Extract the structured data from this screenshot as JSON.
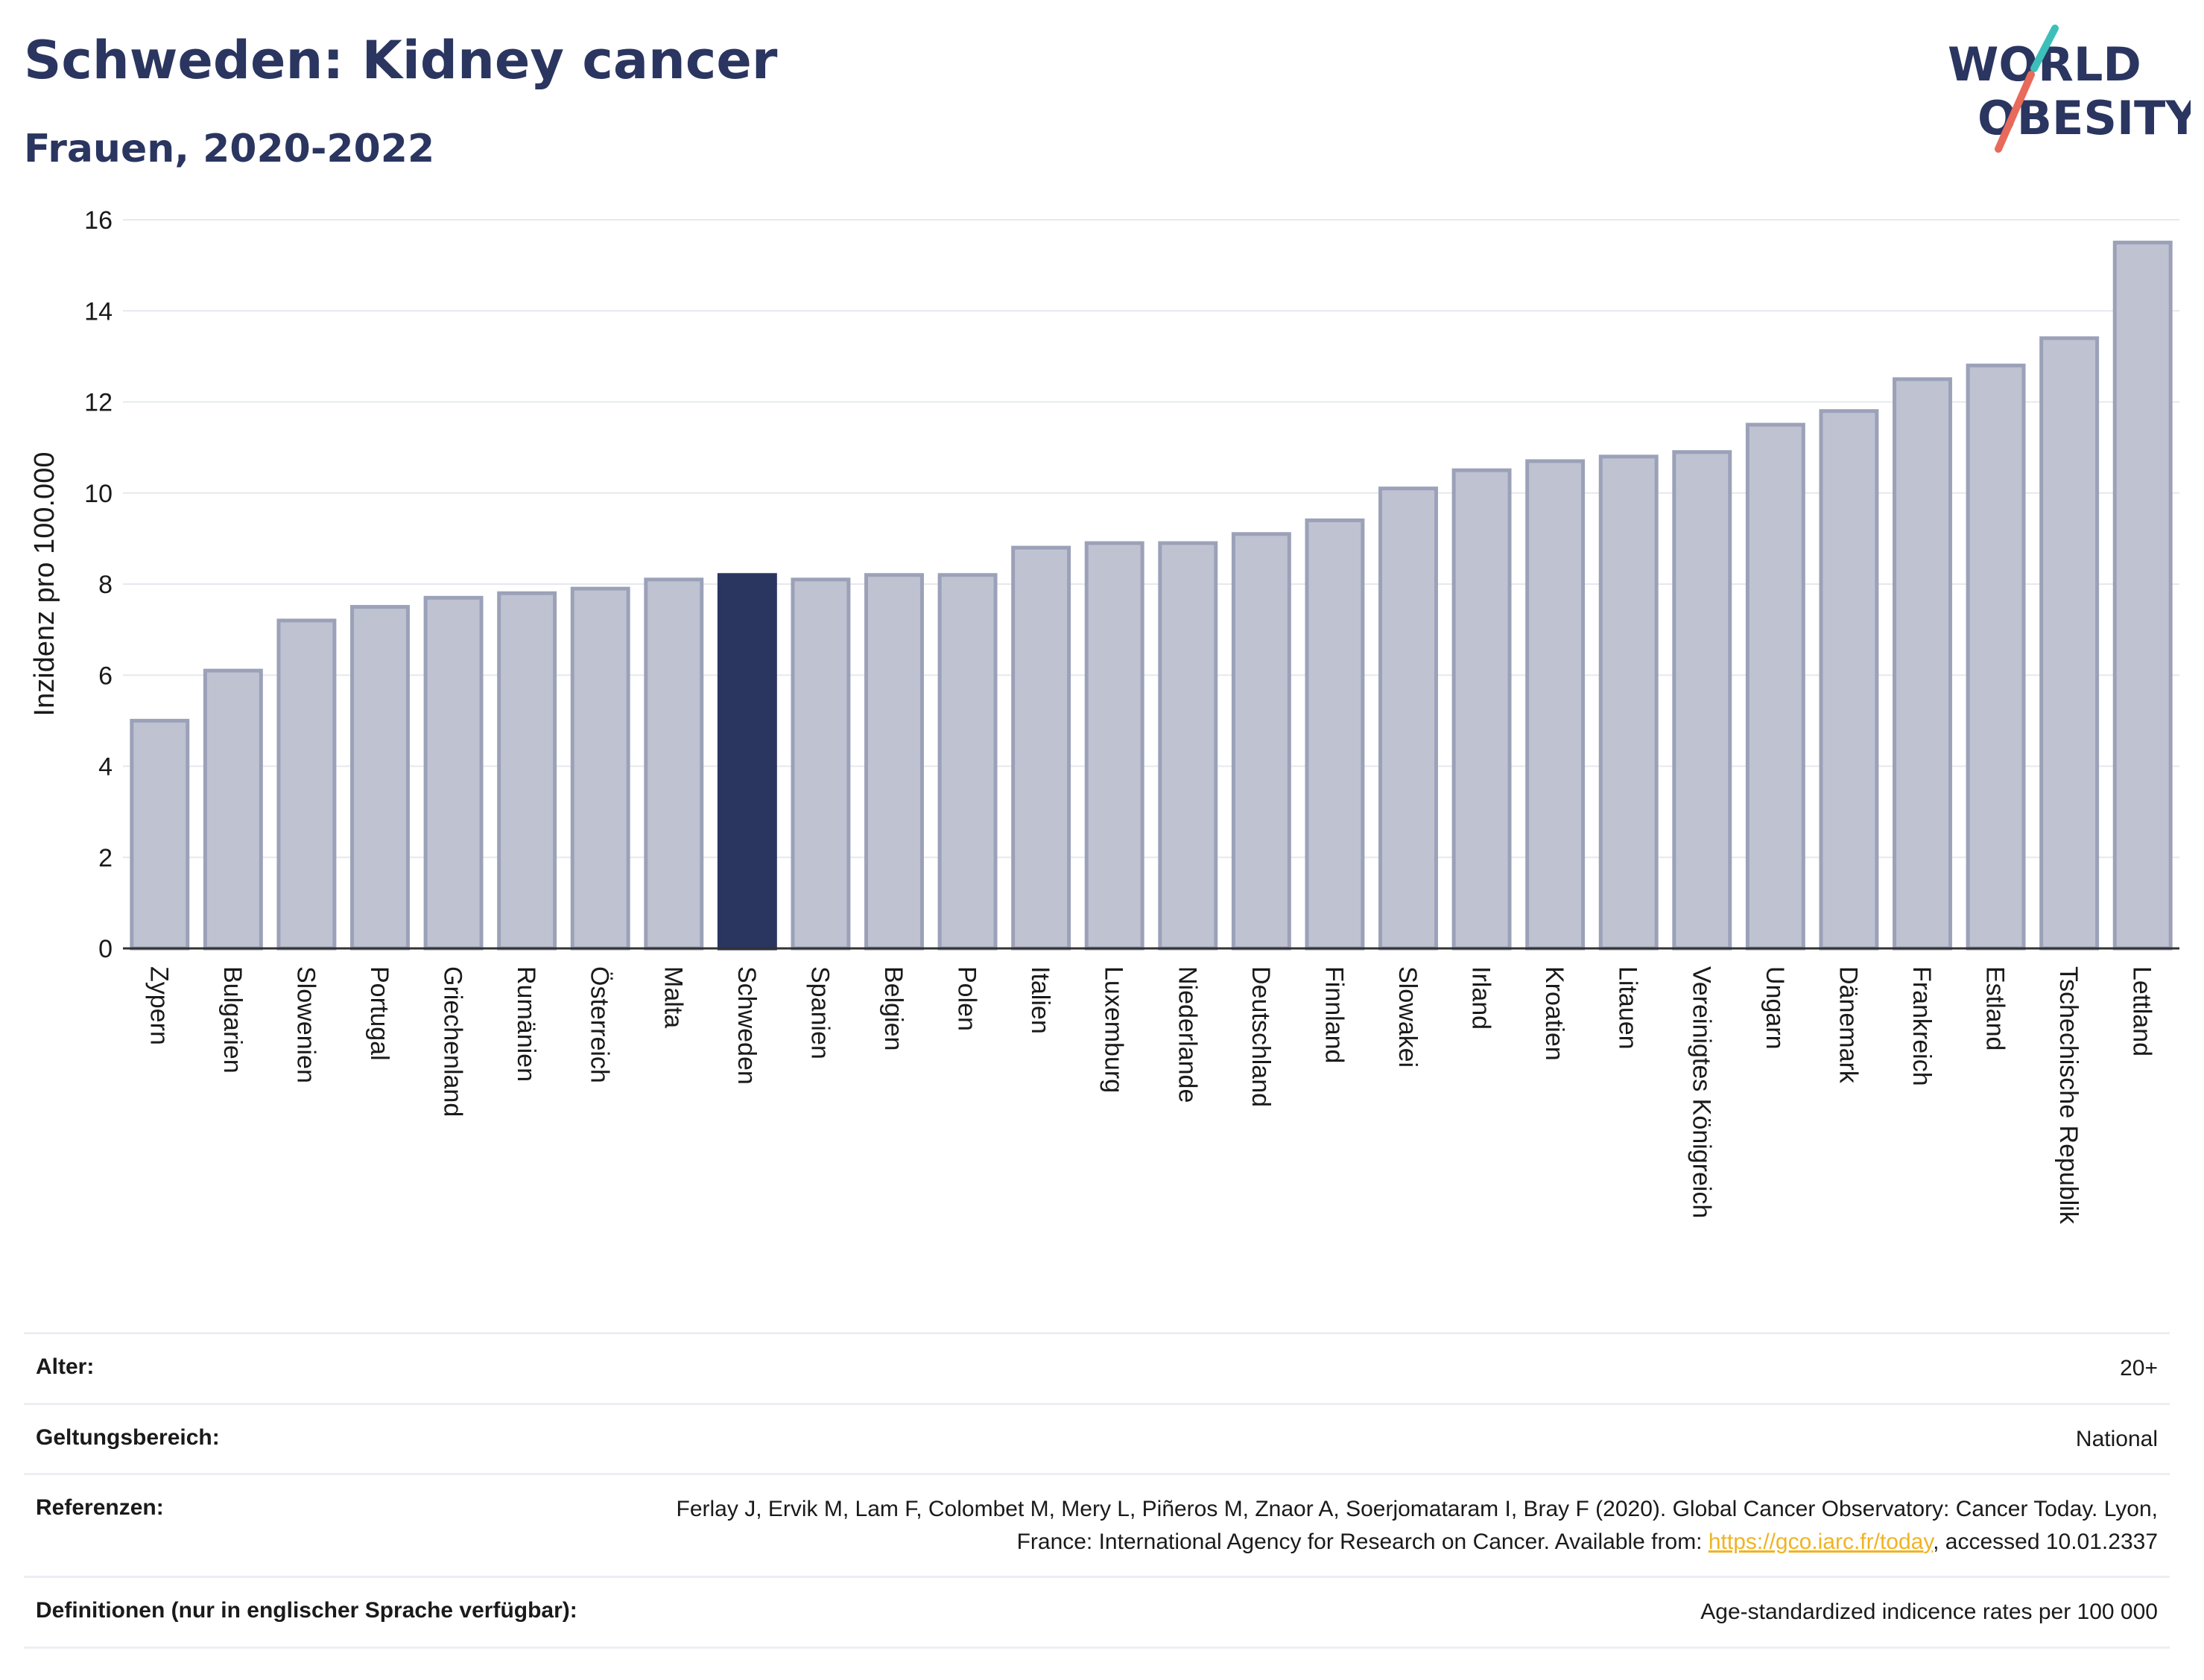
{
  "header": {
    "title": "Schweden: Kidney cancer",
    "subtitle": "Frauen, 2020-2022"
  },
  "logo": {
    "line1": "WORLD",
    "line2": "OBESITY"
  },
  "colors": {
    "highlight": "#2a3560",
    "bar_fill": "#bfc3d1",
    "bar_stroke": "#9ba1b8",
    "accent_teal": "#3cbfb9",
    "accent_red": "#e86a5a"
  },
  "chart_data": {
    "type": "bar",
    "title": "",
    "xlabel": "",
    "ylabel": "Inzidenz pro 100.000",
    "ylim": [
      0,
      16
    ],
    "yticks": [
      0,
      2,
      4,
      6,
      8,
      10,
      12,
      14,
      16
    ],
    "grid": true,
    "highlight": "Schweden",
    "categories": [
      "Zypern",
      "Bulgarien",
      "Slowenien",
      "Portugal",
      "Griechenland",
      "Rumänien",
      "Österreich",
      "Malta",
      "Schweden",
      "Spanien",
      "Belgien",
      "Polen",
      "Italien",
      "Luxemburg",
      "Niederlande",
      "Deutschland",
      "Finnland",
      "Slowakei",
      "Irland",
      "Kroatien",
      "Litauen",
      "Vereinigtes Königreich",
      "Ungarn",
      "Dänemark",
      "Frankreich",
      "Estland",
      "Tschechische Republik",
      "Lettland"
    ],
    "values": [
      5.0,
      6.1,
      7.2,
      7.5,
      7.7,
      7.8,
      7.9,
      8.1,
      8.2,
      8.1,
      8.2,
      8.2,
      8.8,
      8.9,
      8.9,
      9.1,
      9.4,
      10.1,
      10.5,
      10.7,
      10.8,
      10.9,
      11.5,
      11.8,
      12.5,
      12.8,
      13.4,
      15.5
    ]
  },
  "meta": {
    "age_label": "Alter:",
    "age_value": "20+",
    "scope_label": "Geltungsbereich:",
    "scope_value": "National",
    "refs_label": "Referenzen:",
    "refs_text_before": "Ferlay J, Ervik M, Lam F, Colombet M, Mery L, Piñeros M, Znaor A, Soerjomataram I, Bray F (2020). Global Cancer Observatory: Cancer Today. Lyon, France: International Agency for Research on Cancer. Available from: ",
    "refs_link": "https://gco.iarc.fr/today",
    "refs_text_after": ", accessed 10.01.2337",
    "defs_label": "Definitionen (nur in englischer Sprache verfügbar):",
    "defs_value": "Age-standardized indicence rates per 100 000"
  }
}
